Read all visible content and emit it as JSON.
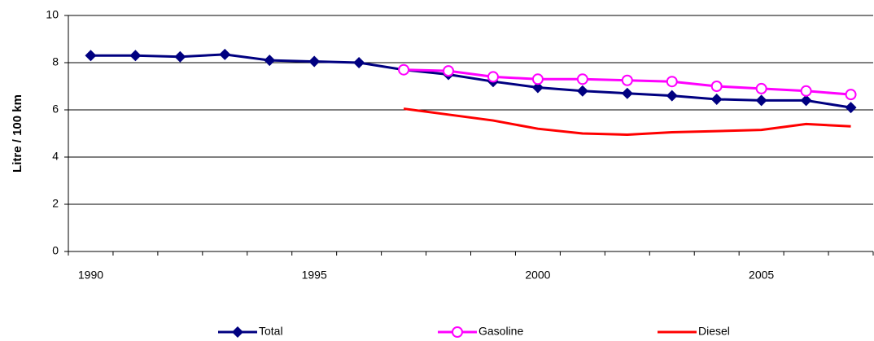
{
  "chart_data": {
    "type": "line",
    "y_label": "Litre / 100 km",
    "categories": [
      "1990",
      null,
      null,
      null,
      null,
      "1995",
      null,
      null,
      null,
      null,
      "2000",
      null,
      null,
      null,
      null,
      "2005",
      null,
      null
    ],
    "series": [
      {
        "name": "Total",
        "color": "#000080",
        "marker": "diamond",
        "values": [
          8.3,
          8.3,
          8.25,
          8.35,
          8.1,
          8.05,
          8.0,
          7.7,
          7.5,
          7.2,
          6.95,
          6.8,
          6.7,
          6.6,
          6.45,
          6.4,
          6.4,
          6.1
        ]
      },
      {
        "name": "Gasoline",
        "color": "#ff00ff",
        "marker": "circle",
        "values": [
          null,
          null,
          null,
          null,
          null,
          null,
          null,
          7.7,
          7.65,
          7.4,
          7.3,
          7.3,
          7.25,
          7.2,
          7.0,
          6.9,
          6.8,
          6.65
        ]
      },
      {
        "name": "Diesel",
        "color": "#ff0000",
        "marker": "none",
        "values": [
          null,
          null,
          null,
          null,
          null,
          null,
          null,
          6.05,
          5.8,
          5.55,
          5.2,
          5.0,
          4.95,
          5.05,
          5.1,
          5.15,
          5.4,
          5.3
        ]
      }
    ],
    "ylim": [
      0,
      10
    ],
    "yticks": [
      0,
      2,
      4,
      6,
      8,
      10
    ],
    "grid": true,
    "legend": "bottom"
  }
}
